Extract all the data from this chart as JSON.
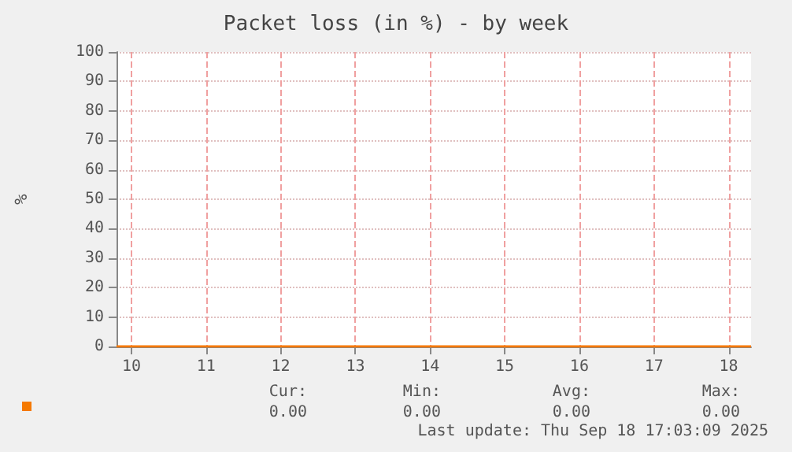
{
  "chart_data": {
    "type": "line",
    "title": "Packet loss (in %) - by week",
    "ylabel": "%",
    "x": [
      9.8,
      18.3
    ],
    "series": [
      {
        "color": "#f57900",
        "values": [
          0,
          0
        ]
      }
    ],
    "xlim": [
      9.8,
      18.3
    ],
    "xticks": [
      10,
      11,
      12,
      13,
      14,
      15,
      16,
      17,
      18
    ],
    "ylim": [
      0,
      100
    ],
    "yticks": [
      0,
      10,
      20,
      30,
      40,
      50,
      60,
      70,
      80,
      90,
      100
    ],
    "grid": true,
    "marker": "none",
    "line_style": "solid",
    "legend": false,
    "annotations": [
      "Cur:",
      "Min:",
      "Avg:",
      "Max:",
      "0.00",
      "0.00",
      "0.00",
      "0.00",
      "Last update: Thu Sep 18 17:03:09 2025"
    ]
  }
}
